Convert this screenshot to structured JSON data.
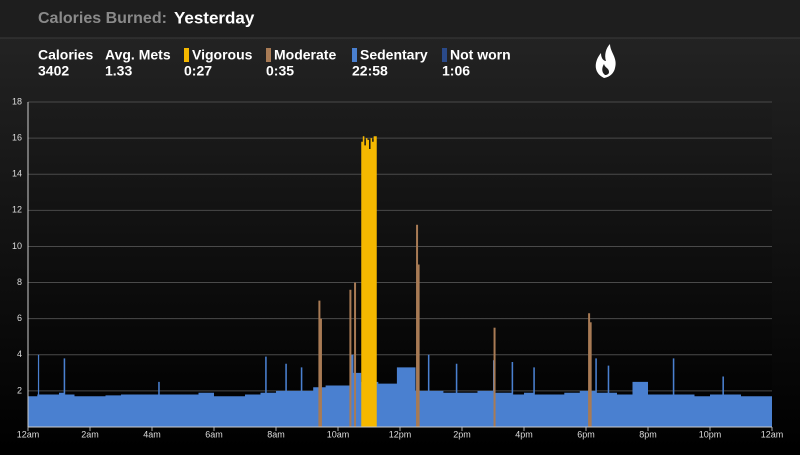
{
  "header": {
    "label": "Calories Burned:",
    "title": "Yesterday"
  },
  "stats": [
    {
      "label": "Calories",
      "value": "3402"
    },
    {
      "label": "Avg. Mets",
      "value": "1.33"
    }
  ],
  "chart_data": {
    "type": "area",
    "xlim": [
      0,
      24
    ],
    "xticks": [
      {
        "value": 0,
        "label": "12am"
      },
      {
        "value": 2,
        "label": "2am"
      },
      {
        "value": 4,
        "label": "4am"
      },
      {
        "value": 6,
        "label": "6am"
      },
      {
        "value": 8,
        "label": "8am"
      },
      {
        "value": 10,
        "label": "10am"
      },
      {
        "value": 12,
        "label": "12pm"
      },
      {
        "value": 14,
        "label": "2pm"
      },
      {
        "value": 16,
        "label": "4pm"
      },
      {
        "value": 18,
        "label": "6pm"
      },
      {
        "value": 20,
        "label": "8pm"
      },
      {
        "value": 22,
        "label": "10pm"
      },
      {
        "value": 24,
        "label": "12am"
      }
    ],
    "ylim": [
      0,
      18
    ],
    "yticks": [
      2,
      4,
      6,
      8,
      10,
      12,
      14,
      16,
      18
    ],
    "grid": true,
    "series": [
      {
        "name": "Vigorous",
        "summary": "0:27",
        "color": "#f5b800",
        "type": "area",
        "x": [
          10.75,
          10.8,
          10.85,
          10.9,
          10.95,
          11.0,
          11.05,
          11.1,
          11.15,
          11.25
        ],
        "values": [
          15.8,
          16.1,
          15.6,
          16.0,
          15.9,
          15.4,
          16.0,
          15.8,
          16.1,
          16.0
        ]
      },
      {
        "name": "Moderate",
        "summary": "0:35",
        "color": "#a87b55",
        "type": "bar",
        "x": [
          9.4,
          9.45,
          10.4,
          10.55,
          11.1,
          12.55,
          12.6,
          15.05,
          18.1,
          18.15
        ],
        "values": [
          7,
          6,
          7.6,
          8,
          8.5,
          11.2,
          9,
          5.5,
          6.3,
          5.8
        ]
      },
      {
        "name": "Sedentary",
        "summary": "22:58",
        "color": "#4a80d0",
        "type": "area",
        "x": [
          0,
          0.3,
          0.32,
          0.36,
          1.0,
          1.15,
          1.2,
          1.5,
          2,
          2.5,
          3,
          3.5,
          4.2,
          4.25,
          5,
          5.5,
          6,
          6.5,
          7,
          7.5,
          7.65,
          7.7,
          8,
          8.3,
          8.35,
          8.8,
          8.85,
          9.2,
          9.6,
          10,
          10.4,
          10.5,
          10.75,
          11.2,
          11.3,
          11.9,
          12.4,
          12.5,
          12.9,
          12.95,
          13.4,
          13.8,
          13.85,
          14.5,
          15,
          15.05,
          15.6,
          15.65,
          16,
          16.3,
          16.35,
          16.9,
          17.3,
          17.8,
          18.3,
          18.35,
          18.7,
          18.75,
          19,
          19.5,
          20,
          20.5,
          20.8,
          20.85,
          21.5,
          22,
          22.4,
          22.45,
          23,
          23.5,
          24
        ],
        "values": [
          1.7,
          1.8,
          4.0,
          1.8,
          1.9,
          3.8,
          1.8,
          1.7,
          1.7,
          1.75,
          1.8,
          1.8,
          2.5,
          1.8,
          1.8,
          1.9,
          1.7,
          1.7,
          1.8,
          1.9,
          3.9,
          1.9,
          2.0,
          3.5,
          2.0,
          3.3,
          2.0,
          2.2,
          2.3,
          2.3,
          4.0,
          3.0,
          2.5,
          2.5,
          2.4,
          3.3,
          3.3,
          2.0,
          4.0,
          2.0,
          1.9,
          3.5,
          1.9,
          2.0,
          3.7,
          1.9,
          3.6,
          1.8,
          1.9,
          3.3,
          1.8,
          1.8,
          1.9,
          2.0,
          3.8,
          1.9,
          3.4,
          1.9,
          1.8,
          2.5,
          1.8,
          1.8,
          3.8,
          1.8,
          1.7,
          1.8,
          2.8,
          1.8,
          1.7,
          1.7,
          1.6
        ]
      },
      {
        "name": "Not worn",
        "summary": "1:06",
        "color": "#2a4a8a",
        "type": "area",
        "x": [],
        "values": []
      }
    ]
  }
}
